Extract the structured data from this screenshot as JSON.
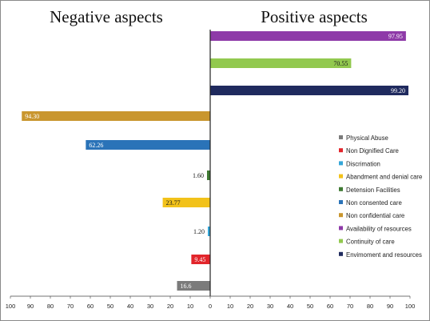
{
  "chart_data": {
    "type": "bar",
    "orientation": "horizontal-diverging",
    "headings": {
      "negative": "Negative aspects",
      "positive": "Positive aspects"
    },
    "xlim": [
      -100,
      100
    ],
    "x_ticks": [
      -100,
      -90,
      -80,
      -70,
      -60,
      -50,
      -40,
      -30,
      -20,
      -10,
      0,
      10,
      20,
      30,
      40,
      50,
      60,
      70,
      80,
      90,
      100
    ],
    "x_tick_labels": [
      "100",
      "90",
      "80",
      "70",
      "60",
      "50",
      "40",
      "30",
      "20",
      "10",
      "0",
      "10",
      "20",
      "30",
      "40",
      "50",
      "60",
      "70",
      "80",
      "90",
      "100"
    ],
    "bars": [
      {
        "category": "Availability of resources",
        "value": 97.95,
        "label": "97.95",
        "color": "#8e3aa8",
        "label_color": "#ffffff"
      },
      {
        "category": "Continuity of care",
        "value": 70.55,
        "label": "70.55",
        "color": "#92c94f",
        "label_color": "#1a1a1a"
      },
      {
        "category": "Envimoment and resources",
        "value": 99.2,
        "label": "99.20",
        "color": "#1f2a5e",
        "label_color": "#ffffff"
      },
      {
        "category": "Non confidential care",
        "value": -94.3,
        "label": "94.30",
        "color": "#c9962e",
        "label_color": "#ffffff"
      },
      {
        "category": "Non consented care",
        "value": -62.26,
        "label": "62.26",
        "color": "#2a73b8",
        "label_color": "#ffffff"
      },
      {
        "category": "Detension Facilities",
        "value": -1.6,
        "label": "1.60",
        "color": "#3f7a33",
        "label_color": "#1a1a1a"
      },
      {
        "category": "Abandment and denial care",
        "value": -23.77,
        "label": "23.77",
        "color": "#f2c21a",
        "label_color": "#1a1a1a"
      },
      {
        "category": "Discrimation",
        "value": -1.2,
        "label": "1.20",
        "color": "#34a6d8",
        "label_color": "#1a1a1a"
      },
      {
        "category": "Non Dignified Care",
        "value": -9.45,
        "label": "9.45",
        "color": "#e2252b",
        "label_color": "#ffffff"
      },
      {
        "category": "Physical Abuse",
        "value": -16.6,
        "label": "16.6",
        "color": "#7b7b7b",
        "label_color": "#ffffff"
      }
    ],
    "legend": {
      "placement": "right",
      "items": [
        {
          "label": "Physical Abuse",
          "color": "#7b7b7b"
        },
        {
          "label": "Non Dignified Care",
          "color": "#e2252b"
        },
        {
          "label": "Discrimation",
          "color": "#34a6d8"
        },
        {
          "label": "Abandment and denial care",
          "color": "#f2c21a"
        },
        {
          "label": "Detension Facilities",
          "color": "#3f7a33"
        },
        {
          "label": "Non consented care",
          "color": "#2a73b8"
        },
        {
          "label": "Non confidential care",
          "color": "#c9962e"
        },
        {
          "label": "Availability of resources",
          "color": "#8e3aa8"
        },
        {
          "label": "Continuity of care",
          "color": "#92c94f"
        },
        {
          "label": "Envimoment and resources",
          "color": "#1f2a5e"
        }
      ]
    },
    "grid": false
  }
}
